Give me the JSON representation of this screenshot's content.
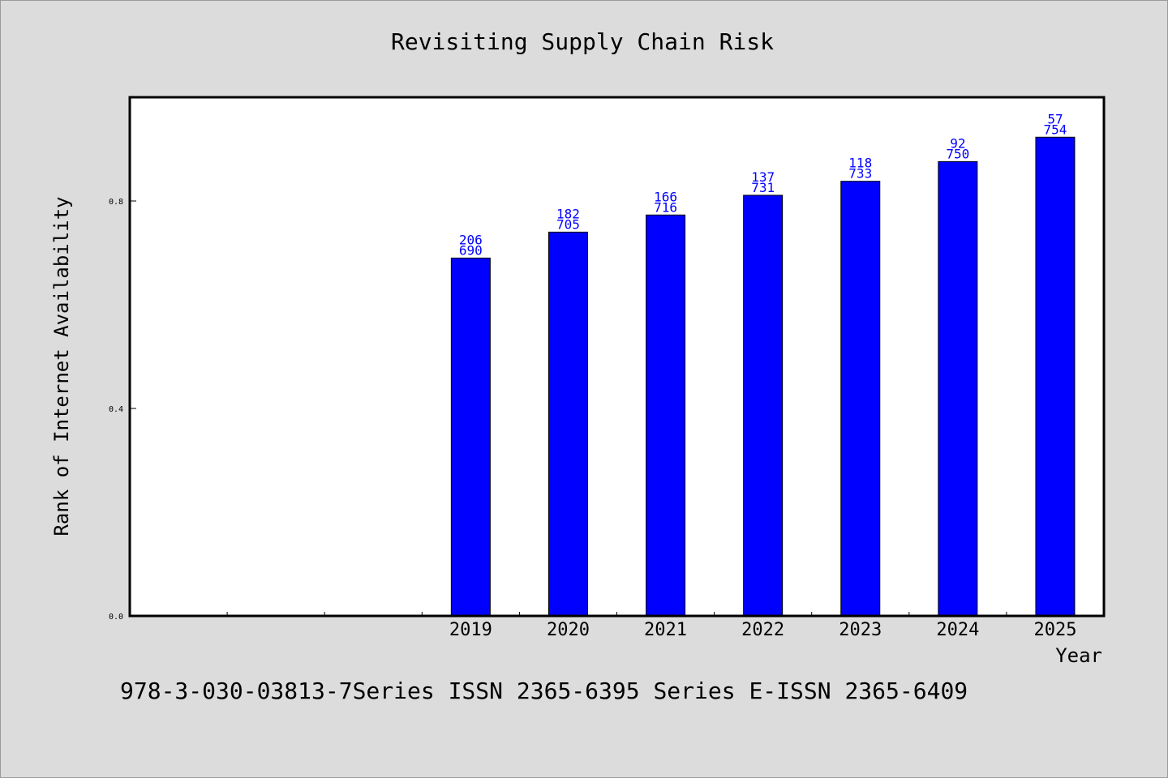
{
  "chart_data": {
    "type": "bar",
    "title": "Revisiting Supply Chain Risk",
    "xlabel": "Year",
    "ylabel": "Rank of Internet Availability",
    "categories": [
      "",
      "",
      "",
      "2019",
      "2020",
      "2021",
      "2022",
      "2023",
      "2024",
      "2025"
    ],
    "values": [
      null,
      null,
      null,
      0.69,
      0.74,
      0.773,
      0.811,
      0.838,
      0.876,
      0.923
    ],
    "label_top": [
      "",
      "",
      "",
      "206",
      "182",
      "166",
      "137",
      "118",
      "92",
      "57"
    ],
    "label_bottom": [
      "",
      "",
      "",
      "690",
      "705",
      "716",
      "731",
      "733",
      "750",
      "754"
    ],
    "ylim": [
      0,
      1
    ],
    "yticks": [
      0.0,
      0.4,
      0.8
    ],
    "ytick_labels": [
      "0.0",
      "0.4",
      "0.8"
    ],
    "grid": false,
    "colors": {
      "bar": "#0000ff",
      "label": "#0000ff",
      "background": "#dcdcdc",
      "plot": "#ffffff"
    }
  },
  "footer": "978-3-030-03813-7Series ISSN 2365-6395 Series E-ISSN 2365-6409"
}
